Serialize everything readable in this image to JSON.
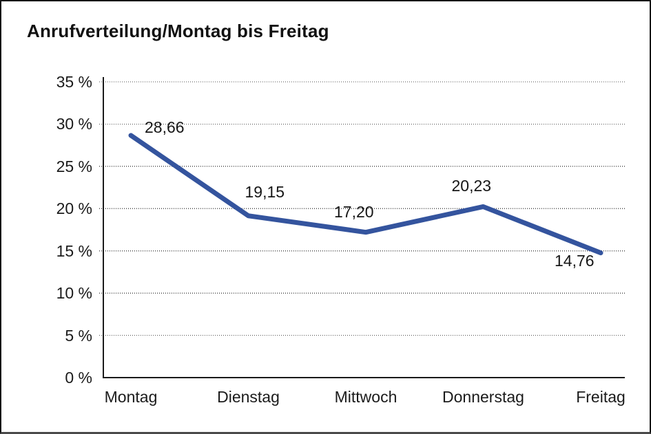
{
  "chart_data": {
    "type": "line",
    "title": "Anrufverteilung/Montag bis Freitag",
    "categories": [
      "Montag",
      "Dienstag",
      "Mittwoch",
      "Donnerstag",
      "Freitag"
    ],
    "values": [
      28.66,
      19.15,
      17.2,
      20.23,
      14.76
    ],
    "value_labels": [
      "28,66",
      "19,15",
      "17,20",
      "20,23",
      "14,76"
    ],
    "series_name": "Anrufverteilung",
    "xlabel": "",
    "ylabel": "",
    "ylim": [
      0,
      35
    ],
    "y_ticks": [
      {
        "value": 35,
        "label": "35 %"
      },
      {
        "value": 30,
        "label": "30 %"
      },
      {
        "value": 25,
        "label": "25 %"
      },
      {
        "value": 20,
        "label": "20 %"
      },
      {
        "value": 15,
        "label": "15 %"
      },
      {
        "value": 10,
        "label": "10 %"
      },
      {
        "value": 5,
        "label": "5 %"
      },
      {
        "value": 0,
        "label": "0 %"
      }
    ],
    "grid": "horizontal-dotted",
    "legend": "none",
    "colors": {
      "line": "#34549E",
      "axis": "#1a1a1a",
      "grid": "#4d4d4d",
      "text": "#1b1b1b",
      "background": "#ffffff",
      "frame_border": "#161616"
    },
    "line_width": 7
  }
}
